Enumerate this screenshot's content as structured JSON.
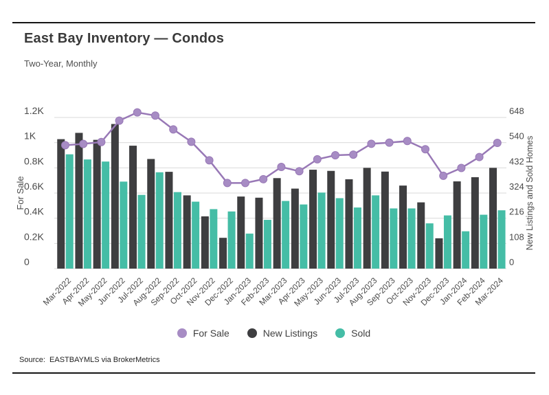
{
  "page": {
    "title": "East Bay Inventory — Condos",
    "subtitle": "Two-Year, Monthly",
    "source": "Source:  EASTBAYMLS via BrokerMetrics"
  },
  "legend": {
    "items": [
      {
        "label": "For Sale",
        "color": "#a78cc4"
      },
      {
        "label": "New Listings",
        "color": "#3e3e40"
      },
      {
        "label": "Sold",
        "color": "#45bda6"
      }
    ]
  },
  "chart_data": {
    "type": "combo",
    "title": "East Bay Inventory — Condos",
    "subtitle": "Two-Year, Monthly",
    "grid": true,
    "legend_position": "bottom",
    "categories": [
      "Mar-2022",
      "Apr-2022",
      "May-2022",
      "Jun-2022",
      "Jul-2022",
      "Aug-2022",
      "Sep-2022",
      "Oct-2022",
      "Nov-2022",
      "Dec-2022",
      "Jan-2023",
      "Feb-2023",
      "Mar-2023",
      "Apr-2023",
      "May-2023",
      "Jun-2023",
      "Jul-2023",
      "Aug-2023",
      "Sep-2023",
      "Oct-2023",
      "Nov-2023",
      "Dec-2023",
      "Jan-2024",
      "Feb-2024",
      "Mar-2024"
    ],
    "series": [
      {
        "name": "For Sale",
        "type": "line",
        "axis": "left",
        "color": "#9878b6",
        "marker_color": "#a78cc4",
        "values": [
          980,
          990,
          1005,
          1175,
          1240,
          1215,
          1105,
          1007,
          860,
          680,
          680,
          710,
          807,
          773,
          868,
          900,
          905,
          991,
          1000,
          1013,
          948,
          737,
          799,
          886,
          998
        ]
      },
      {
        "name": "New Listings",
        "type": "bar",
        "axis": "right",
        "color": "#3e3e40",
        "values": [
          555,
          582,
          552,
          620,
          527,
          470,
          415,
          314,
          224,
          132,
          309,
          304,
          388,
          343,
          424,
          419,
          383,
          432,
          416,
          356,
          284,
          130,
          374,
          392,
          432
        ]
      },
      {
        "name": "Sold",
        "type": "bar",
        "axis": "right",
        "color": "#45bda6",
        "values": [
          490,
          468,
          459,
          373,
          316,
          413,
          328,
          287,
          255,
          245,
          150,
          209,
          290,
          275,
          326,
          302,
          262,
          314,
          258,
          258,
          194,
          228,
          160,
          231,
          250
        ]
      }
    ],
    "left_axis": {
      "label": "For Sale",
      "max": 1200,
      "tick_labels": [
        "1.2K",
        "1K",
        "0.8K",
        "0.6K",
        "0.4K",
        "0.2K",
        "0"
      ],
      "tick_values": [
        1200,
        1000,
        800,
        600,
        400,
        200,
        0
      ]
    },
    "right_axis": {
      "label": "New Listings and Sold Homes",
      "max": 648,
      "tick_labels": [
        "648",
        "540",
        "432",
        "324",
        "216",
        "108",
        "0"
      ],
      "tick_values": [
        648,
        540,
        432,
        324,
        216,
        108,
        0
      ]
    },
    "grid_color": "#d9d9d9"
  }
}
